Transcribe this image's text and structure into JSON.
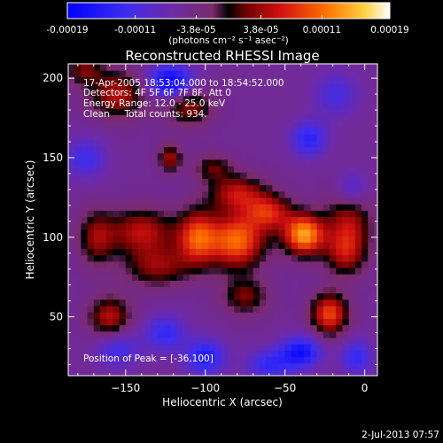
{
  "colorbar": {
    "tick_labels": [
      "-0.00019",
      "-0.00011",
      "-3.8e-05",
      "3.8e-05",
      "0.00011",
      "0.00019"
    ],
    "tick_values": [
      -0.00019,
      -0.00011,
      -3.8e-05,
      3.8e-05,
      0.00011,
      0.00019
    ],
    "range": [
      -0.00019,
      0.00019
    ],
    "units_label": "(photons cm⁻² s⁻¹ asec⁻²)"
  },
  "plot": {
    "title": "Reconstructed RHESSI Image",
    "xlabel": "Heliocentric X (arcsec)",
    "ylabel": "Heliocentric Y (arcsec)",
    "x_ticks": [
      "−150",
      "−100",
      "−50",
      "0"
    ],
    "x_tick_values": [
      -150,
      -100,
      -50,
      0
    ],
    "y_ticks": [
      "50",
      "100",
      "150",
      "200"
    ],
    "y_tick_values": [
      50,
      100,
      150,
      200
    ],
    "xlim": [
      -186,
      8
    ],
    "ylim": [
      13,
      209
    ]
  },
  "annotations": {
    "time_range": "17-Apr-2005 18:53:04.000 to 18:54:52.000",
    "detectors": "Detectors: 4F 5F 6F 7F 8F, Att 0",
    "energy_range": "Energy Range: 12.0 - 25.0 keV",
    "method": "Clean     Total counts: 934.",
    "peak_position": "Position of Peak = [-36,100]"
  },
  "footer": {
    "timestamp": "2-Jul-2013 07:57"
  },
  "image_map": {
    "peak": {
      "x": -36,
      "y": 100
    },
    "blobs": [
      {
        "x": -38,
        "y": 102,
        "sx": 9,
        "sy": 9,
        "a": 1.0
      },
      {
        "x": -80,
        "y": 98,
        "sx": 12,
        "sy": 12,
        "a": 0.85
      },
      {
        "x": -105,
        "y": 100,
        "sx": 9,
        "sy": 12,
        "a": 0.75
      },
      {
        "x": -60,
        "y": 116,
        "sx": 10,
        "sy": 8,
        "a": 0.6
      },
      {
        "x": -140,
        "y": 104,
        "sx": 14,
        "sy": 10,
        "a": 0.55
      },
      {
        "x": -168,
        "y": 100,
        "sx": 8,
        "sy": 12,
        "a": 0.45
      },
      {
        "x": -80,
        "y": 128,
        "sx": 12,
        "sy": 8,
        "a": 0.55
      },
      {
        "x": -130,
        "y": 82,
        "sx": 14,
        "sy": 9,
        "a": 0.45
      },
      {
        "x": -10,
        "y": 110,
        "sx": 10,
        "sy": 14,
        "a": 0.5
      },
      {
        "x": -22,
        "y": 52,
        "sx": 8,
        "sy": 9,
        "a": 0.75
      },
      {
        "x": -12,
        "y": 90,
        "sx": 9,
        "sy": 10,
        "a": 0.45
      },
      {
        "x": -75,
        "y": 63,
        "sx": 10,
        "sy": 8,
        "a": 0.4
      },
      {
        "x": -160,
        "y": 50,
        "sx": 9,
        "sy": 9,
        "a": 0.55
      },
      {
        "x": -155,
        "y": 190,
        "sx": 12,
        "sy": 10,
        "a": 0.55
      },
      {
        "x": -110,
        "y": 182,
        "sx": 10,
        "sy": 8,
        "a": 0.45
      },
      {
        "x": -122,
        "y": 150,
        "sx": 5,
        "sy": 6,
        "a": 0.5
      },
      {
        "x": -95,
        "y": 144,
        "sx": 8,
        "sy": 6,
        "a": 0.35
      },
      {
        "x": -176,
        "y": 205,
        "sx": 8,
        "sy": 6,
        "a": 0.4
      },
      {
        "x": -122,
        "y": 198,
        "sx": 10,
        "sy": 7,
        "a": -0.7
      },
      {
        "x": -35,
        "y": 162,
        "sx": 8,
        "sy": 8,
        "a": -0.45
      },
      {
        "x": -8,
        "y": 130,
        "sx": 7,
        "sy": 8,
        "a": -0.35
      },
      {
        "x": -18,
        "y": 190,
        "sx": 10,
        "sy": 10,
        "a": -0.3
      },
      {
        "x": -40,
        "y": 28,
        "sx": 9,
        "sy": 7,
        "a": -0.6
      },
      {
        "x": -100,
        "y": 25,
        "sx": 9,
        "sy": 8,
        "a": -0.5
      },
      {
        "x": -60,
        "y": 20,
        "sx": 10,
        "sy": 7,
        "a": -0.4
      },
      {
        "x": -125,
        "y": 40,
        "sx": 9,
        "sy": 8,
        "a": -0.4
      },
      {
        "x": -5,
        "y": 25,
        "sx": 7,
        "sy": 8,
        "a": -0.4
      },
      {
        "x": -175,
        "y": 150,
        "sx": 9,
        "sy": 9,
        "a": -0.35
      },
      {
        "x": -155,
        "y": 30,
        "sx": 10,
        "sy": 8,
        "a": -0.35
      }
    ]
  }
}
